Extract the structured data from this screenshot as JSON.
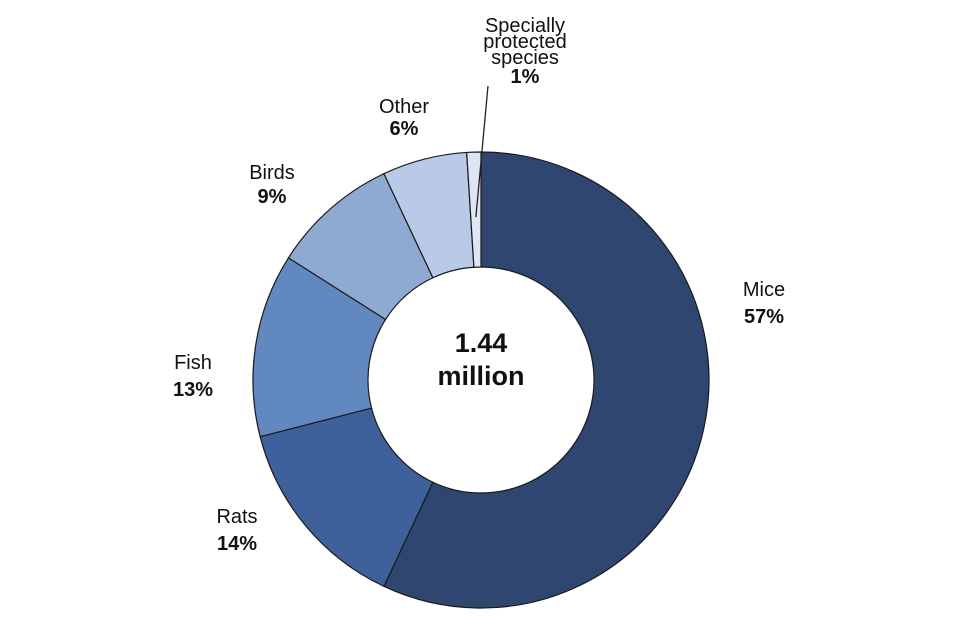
{
  "chart_data": {
    "type": "pie",
    "donut": true,
    "center_label": [
      "1.44",
      "million"
    ],
    "slices": [
      {
        "name": "Mice",
        "value": 57,
        "label": "57%",
        "color": "#2e4670"
      },
      {
        "name": "Rats",
        "value": 14,
        "label": "14%",
        "color": "#3e619c"
      },
      {
        "name": "Fish",
        "value": 13,
        "label": "13%",
        "color": "#6189c0"
      },
      {
        "name": "Birds",
        "value": 9,
        "label": "9%",
        "color": "#8eaad3"
      },
      {
        "name": "Other",
        "value": 6,
        "label": "6%",
        "color": "#b8cae5"
      },
      {
        "name": "Specially protected species",
        "name_lines": [
          "Specially",
          "protected",
          "species"
        ],
        "value": 1,
        "label": "1%",
        "color": "#dde6f2"
      }
    ],
    "legend": "none"
  }
}
